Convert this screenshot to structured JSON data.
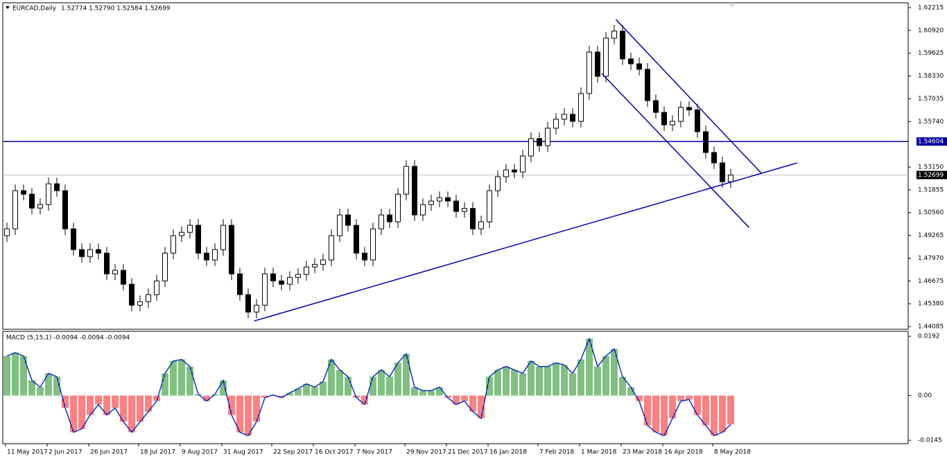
{
  "chart_data": [
    {
      "type": "candlestick",
      "title": "EURCAD,Daily",
      "subtitle": "1.52774 1.52790 1.52584 1.52699",
      "categories": [
        null,
        null,
        "11 May 2017",
        null,
        null,
        null,
        null,
        "2 Jun 2017",
        null,
        null,
        null,
        null,
        "26 Jun 2017",
        null,
        null,
        null,
        null,
        null,
        "18 Jul 2017",
        null,
        null,
        null,
        null,
        "9 Aug 2017",
        null,
        null,
        null,
        null,
        "31 Aug 2017",
        null,
        null,
        null,
        null,
        null,
        "22 Sep 2017",
        null,
        null,
        null,
        null,
        "16 Oct 2017",
        null,
        null,
        null,
        null,
        "7 Nov 2017",
        null,
        null,
        null,
        null,
        null,
        "29 Nov 2017",
        null,
        null,
        null,
        null,
        "21 Dec 2017",
        null,
        null,
        null,
        null,
        "16 Jan 2018",
        null,
        null,
        null,
        null,
        null,
        "7 Feb 2018",
        null,
        null,
        null,
        null,
        "1 Mar 2018",
        null,
        null,
        null,
        null,
        "23 Mar 2018",
        null,
        null,
        null,
        null,
        "16 Apr 2018",
        null,
        null,
        null,
        null,
        null,
        "8 May 2018"
      ],
      "open": [
        1.4925,
        1.4964,
        1.5181,
        1.5161,
        1.5082,
        1.5102,
        1.522,
        1.5181,
        1.4964,
        1.4846,
        1.4806,
        1.4846,
        1.4826,
        1.4708,
        1.4728,
        1.4649,
        1.453,
        1.455,
        1.459,
        1.4668,
        1.4826,
        1.4925,
        1.4944,
        1.4984,
        1.4826,
        1.4787,
        1.4846,
        1.4984,
        1.4708,
        1.459,
        1.4491,
        1.453,
        1.4708,
        1.4668,
        1.4649,
        1.4688,
        1.4705,
        1.4747,
        1.4762,
        1.4787,
        1.4925,
        1.5043,
        1.4984,
        1.4826,
        1.4787,
        1.4964,
        1.5043,
        1.5004,
        1.5161,
        1.5319,
        1.5043,
        1.5102,
        1.5122,
        1.5141,
        1.5122,
        1.5063,
        1.508,
        1.4964,
        1.5004,
        1.5181,
        1.526,
        1.5299,
        1.5287,
        1.5378,
        1.5477,
        1.5437,
        1.5536,
        1.5587,
        1.5615,
        1.5575,
        1.5733,
        1.5969,
        1.5831,
        1.6048,
        1.6088,
        1.593,
        1.5902,
        1.5871,
        1.5693,
        1.5626,
        1.5555,
        1.5575,
        1.5654,
        1.564,
        1.5516,
        1.5398,
        1.5339,
        1.5232
      ],
      "high": [
        1.4999,
        1.5216,
        1.5216,
        1.5196,
        1.5137,
        1.5255,
        1.5255,
        1.5216,
        1.4999,
        1.4881,
        1.4881,
        1.4881,
        1.4861,
        1.4763,
        1.4763,
        1.4684,
        1.4585,
        1.4625,
        1.4703,
        1.4861,
        1.496,
        1.4979,
        1.5019,
        1.5019,
        1.4861,
        1.4881,
        1.5019,
        1.5019,
        1.4743,
        1.4625,
        1.4565,
        1.4743,
        1.4743,
        1.4703,
        1.4723,
        1.474,
        1.4782,
        1.4797,
        1.4822,
        1.496,
        1.5078,
        1.5078,
        1.5019,
        1.4861,
        1.4999,
        1.5078,
        1.5078,
        1.5196,
        1.5354,
        1.5354,
        1.5137,
        1.5157,
        1.5176,
        1.5176,
        1.5157,
        1.5115,
        1.5115,
        1.5039,
        1.5216,
        1.5295,
        1.5334,
        1.5334,
        1.5413,
        1.5512,
        1.5512,
        1.5571,
        1.5622,
        1.565,
        1.565,
        1.5768,
        1.6004,
        1.6004,
        1.6083,
        1.6123,
        1.6123,
        1.5965,
        1.5937,
        1.5906,
        1.5728,
        1.5661,
        1.561,
        1.5689,
        1.5689,
        1.5675,
        1.5551,
        1.5433,
        1.5374,
        1.5305
      ],
      "low": [
        1.489,
        1.4929,
        1.5126,
        1.5047,
        1.5047,
        1.5067,
        1.5146,
        1.4929,
        1.4811,
        1.4771,
        1.4771,
        1.4791,
        1.4673,
        1.4673,
        1.4614,
        1.4495,
        1.4495,
        1.4515,
        1.4555,
        1.4633,
        1.4791,
        1.489,
        1.4909,
        1.4791,
        1.4752,
        1.4752,
        1.4811,
        1.4673,
        1.4555,
        1.4456,
        1.4456,
        1.4495,
        1.4633,
        1.4614,
        1.4614,
        1.4653,
        1.467,
        1.4712,
        1.4727,
        1.4752,
        1.489,
        1.4949,
        1.4791,
        1.4752,
        1.4752,
        1.4929,
        1.4969,
        1.4969,
        1.5126,
        1.5008,
        1.5008,
        1.5067,
        1.5087,
        1.5087,
        1.5028,
        1.5028,
        1.4929,
        1.4929,
        1.4969,
        1.5146,
        1.5225,
        1.5252,
        1.5252,
        1.5343,
        1.5402,
        1.5402,
        1.5501,
        1.5552,
        1.554,
        1.554,
        1.5698,
        1.5796,
        1.5796,
        1.6013,
        1.5895,
        1.5867,
        1.5836,
        1.5658,
        1.5591,
        1.552,
        1.552,
        1.554,
        1.5605,
        1.5481,
        1.5363,
        1.5304,
        1.5197,
        1.5197
      ],
      "close": [
        1.4964,
        1.5181,
        1.5161,
        1.5082,
        1.5102,
        1.522,
        1.5181,
        1.4964,
        1.4846,
        1.4806,
        1.4846,
        1.4826,
        1.4708,
        1.4728,
        1.4649,
        1.453,
        1.455,
        1.459,
        1.4668,
        1.4826,
        1.4925,
        1.4944,
        1.4984,
        1.4826,
        1.4787,
        1.4846,
        1.4984,
        1.4708,
        1.459,
        1.4491,
        1.453,
        1.4708,
        1.4668,
        1.4649,
        1.4688,
        1.4705,
        1.4747,
        1.4762,
        1.4787,
        1.4925,
        1.5043,
        1.4984,
        1.4826,
        1.4787,
        1.4964,
        1.5043,
        1.5004,
        1.5161,
        1.5319,
        1.5043,
        1.5102,
        1.5122,
        1.5141,
        1.5122,
        1.5063,
        1.508,
        1.4964,
        1.5004,
        1.5181,
        1.526,
        1.5299,
        1.5287,
        1.5378,
        1.5477,
        1.5437,
        1.5536,
        1.5587,
        1.5615,
        1.5575,
        1.5733,
        1.5969,
        1.5831,
        1.6048,
        1.6088,
        1.593,
        1.5902,
        1.5871,
        1.5693,
        1.5626,
        1.5555,
        1.5575,
        1.5654,
        1.564,
        1.5516,
        1.5398,
        1.5339,
        1.5232,
        1.527
      ],
      "ylim": [
        1.4393,
        1.6249
      ],
      "yticks": [
        1.62215,
        {
          "value": 1.6092,
          "label": "1.60920"
        },
        1.59625,
        {
          "value": 1.5833,
          "label": "1.58330"
        },
        1.57035,
        {
          "value": 1.5574,
          "label": "1.55740"
        },
        {
          "value": 1.5315,
          "label": "1.53150"
        },
        1.51855,
        {
          "value": 1.5056,
          "label": "1.50560"
        },
        1.49265,
        {
          "value": 1.4797,
          "label": "1.47970"
        },
        1.46675,
        {
          "value": 1.4538,
          "label": "1.45380"
        },
        1.44085
      ],
      "level": 1.54604,
      "level_color": "#0000a0",
      "last": 1.52699,
      "last_color": "#c0c0c0",
      "trendlines": [
        {
          "x": [
            29.7,
            95
          ],
          "y": [
            1.444,
            1.5339
          ]
        },
        {
          "x": [
            73.2,
            90.7
          ],
          "y": [
            1.6154,
            1.5279
          ]
        },
        {
          "x": [
            71.5,
            89.2
          ],
          "y": [
            1.5847,
            1.4972
          ]
        }
      ],
      "trendline_color": "#0000b0"
    },
    {
      "type": "macd",
      "title": "MACD (5,15,1) -0.0094 -0.0094 -0.0094",
      "values": [
        0.0128,
        0.0139,
        0.0128,
        0.0049,
        0.0027,
        0.0072,
        0.0061,
        -0.004,
        -0.0119,
        -0.0108,
        -0.0063,
        -0.0029,
        -0.0063,
        -0.004,
        -0.0085,
        -0.0119,
        -0.0085,
        -0.0052,
        -0.0018,
        0.0072,
        0.0112,
        0.0117,
        0.0094,
        0.0004,
        -0.0018,
        0.0004,
        0.0049,
        -0.0063,
        -0.0119,
        -0.013,
        -0.0085,
        -0.0007,
        0.0002,
        -0.0007,
        0.0009,
        0.0022,
        0.0038,
        0.0027,
        0.0045,
        0.0117,
        0.0083,
        0.0061,
        -0.0007,
        -0.0029,
        0.0061,
        0.0083,
        0.0061,
        0.0106,
        0.0135,
        0.0027,
        0.0016,
        0.0016,
        0.0027,
        -0.0007,
        -0.0029,
        -0.0018,
        -0.0052,
        -0.0074,
        0.0061,
        0.0083,
        0.0094,
        0.0083,
        0.0072,
        0.0112,
        0.0094,
        0.0094,
        0.0106,
        0.0099,
        0.0072,
        0.0117,
        0.0184,
        0.0094,
        0.0128,
        0.0151,
        0.0061,
        0.0027,
        -0.0018,
        -0.0097,
        -0.0119,
        -0.013,
        -0.0074,
        -0.0018,
        -0.0013,
        -0.0063,
        -0.0097,
        -0.013,
        -0.0119,
        -0.0094
      ],
      "ylim": [
        -0.0156,
        0.0208
      ],
      "yticks": [
        0.0192,
        {
          "value": 0,
          "label": "0.00"
        },
        -0.0145
      ],
      "positive_color": "#008000",
      "negative_color": "#ff0000",
      "line_color": "#1030c0"
    }
  ]
}
